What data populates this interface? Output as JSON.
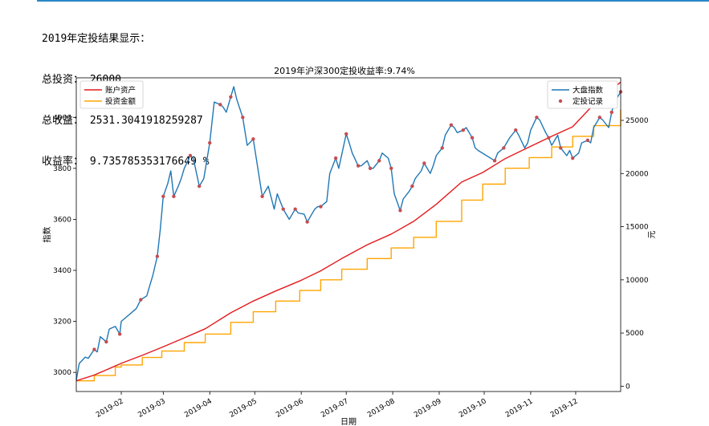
{
  "summary": {
    "heading": "2019年定投结果显示：",
    "total_invest_label": "总投资：",
    "total_invest_value": "26000",
    "total_profit_label": "总收益：",
    "total_profit_value": "2531.3041918259287",
    "return_rate_label": "收益率：",
    "return_rate_value": "9.735785353176649 %"
  },
  "chart_data": {
    "type": "line",
    "title": "2019年沪深300定投收益率:9.74%",
    "xlabel": "日期",
    "ylabel_left": "指数",
    "ylabel_right": "元",
    "x_ticks": [
      "2019-02",
      "2019-03",
      "2019-04",
      "2019-05",
      "2019-06",
      "2019-07",
      "2019-08",
      "2019-09",
      "2019-10",
      "2019-11",
      "2019-12"
    ],
    "x_range": [
      "2019-01-02",
      "2019-12-31"
    ],
    "y_left_ticks": [
      3000,
      3200,
      3400,
      3600,
      3800,
      4000
    ],
    "y_left_range": [
      2925,
      4155
    ],
    "y_right_ticks": [
      0,
      5000,
      10000,
      15000,
      20000,
      25000
    ],
    "y_right_range": [
      -500,
      29000
    ],
    "legend_left": {
      "position": "upper left",
      "entries": [
        "账户资产",
        "投资金额"
      ]
    },
    "legend_right": {
      "position": "upper right",
      "entries": [
        "大盘指数",
        "定投记录"
      ]
    },
    "colors": {
      "index": "#1f77b4",
      "assets": "#e41a1c",
      "invest": "#ffa500",
      "records": "#c44e52"
    },
    "index_series": {
      "name": "大盘指数",
      "points": [
        [
          "2019-01-02",
          2970
        ],
        [
          "2019-01-04",
          3035
        ],
        [
          "2019-01-08",
          3060
        ],
        [
          "2019-01-10",
          3055
        ],
        [
          "2019-01-14",
          3090
        ],
        [
          "2019-01-16",
          3080
        ],
        [
          "2019-01-18",
          3140
        ],
        [
          "2019-01-22",
          3120
        ],
        [
          "2019-01-24",
          3170
        ],
        [
          "2019-01-28",
          3180
        ],
        [
          "2019-01-31",
          3150
        ],
        [
          "2019-02-01",
          3200
        ],
        [
          "2019-02-11",
          3250
        ],
        [
          "2019-02-14",
          3285
        ],
        [
          "2019-02-18",
          3300
        ],
        [
          "2019-02-20",
          3340
        ],
        [
          "2019-02-22",
          3380
        ],
        [
          "2019-02-25",
          3455
        ],
        [
          "2019-02-27",
          3560
        ],
        [
          "2019-03-01",
          3690
        ],
        [
          "2019-03-04",
          3740
        ],
        [
          "2019-03-06",
          3790
        ],
        [
          "2019-03-08",
          3690
        ],
        [
          "2019-03-11",
          3730
        ],
        [
          "2019-03-13",
          3760
        ],
        [
          "2019-03-15",
          3800
        ],
        [
          "2019-03-19",
          3850
        ],
        [
          "2019-03-21",
          3840
        ],
        [
          "2019-03-25",
          3730
        ],
        [
          "2019-03-28",
          3760
        ],
        [
          "2019-04-01",
          3900
        ],
        [
          "2019-04-04",
          4060
        ],
        [
          "2019-04-08",
          4050
        ],
        [
          "2019-04-10",
          4040
        ],
        [
          "2019-04-12",
          4020
        ],
        [
          "2019-04-15",
          4080
        ],
        [
          "2019-04-17",
          4120
        ],
        [
          "2019-04-19",
          4070
        ],
        [
          "2019-04-23",
          4000
        ],
        [
          "2019-04-26",
          3890
        ],
        [
          "2019-04-30",
          3915
        ],
        [
          "2019-05-06",
          3690
        ],
        [
          "2019-05-08",
          3710
        ],
        [
          "2019-05-10",
          3730
        ],
        [
          "2019-05-14",
          3640
        ],
        [
          "2019-05-16",
          3700
        ],
        [
          "2019-05-20",
          3640
        ],
        [
          "2019-05-22",
          3620
        ],
        [
          "2019-05-24",
          3600
        ],
        [
          "2019-05-28",
          3640
        ],
        [
          "2019-05-30",
          3625
        ],
        [
          "2019-06-03",
          3620
        ],
        [
          "2019-06-05",
          3590
        ],
        [
          "2019-06-10",
          3640
        ],
        [
          "2019-06-12",
          3650
        ],
        [
          "2019-06-14",
          3650
        ],
        [
          "2019-06-18",
          3670
        ],
        [
          "2019-06-20",
          3780
        ],
        [
          "2019-06-24",
          3840
        ],
        [
          "2019-06-26",
          3800
        ],
        [
          "2019-07-01",
          3935
        ],
        [
          "2019-07-03",
          3900
        ],
        [
          "2019-07-05",
          3860
        ],
        [
          "2019-07-09",
          3810
        ],
        [
          "2019-07-11",
          3810
        ],
        [
          "2019-07-15",
          3830
        ],
        [
          "2019-07-17",
          3800
        ],
        [
          "2019-07-19",
          3800
        ],
        [
          "2019-07-23",
          3830
        ],
        [
          "2019-07-25",
          3860
        ],
        [
          "2019-07-29",
          3840
        ],
        [
          "2019-07-31",
          3800
        ],
        [
          "2019-08-02",
          3700
        ],
        [
          "2019-08-06",
          3635
        ],
        [
          "2019-08-08",
          3680
        ],
        [
          "2019-08-12",
          3710
        ],
        [
          "2019-08-14",
          3730
        ],
        [
          "2019-08-16",
          3760
        ],
        [
          "2019-08-20",
          3790
        ],
        [
          "2019-08-22",
          3820
        ],
        [
          "2019-08-26",
          3780
        ],
        [
          "2019-08-28",
          3810
        ],
        [
          "2019-08-30",
          3850
        ],
        [
          "2019-09-03",
          3880
        ],
        [
          "2019-09-05",
          3930
        ],
        [
          "2019-09-09",
          3970
        ],
        [
          "2019-09-11",
          3960
        ],
        [
          "2019-09-13",
          3940
        ],
        [
          "2019-09-17",
          3950
        ],
        [
          "2019-09-19",
          3960
        ],
        [
          "2019-09-23",
          3920
        ],
        [
          "2019-09-25",
          3880
        ],
        [
          "2019-09-27",
          3870
        ],
        [
          "2019-10-08",
          3830
        ],
        [
          "2019-10-10",
          3860
        ],
        [
          "2019-10-14",
          3880
        ],
        [
          "2019-10-16",
          3900
        ],
        [
          "2019-10-18",
          3920
        ],
        [
          "2019-10-22",
          3950
        ],
        [
          "2019-10-24",
          3930
        ],
        [
          "2019-10-28",
          3880
        ],
        [
          "2019-10-30",
          3900
        ],
        [
          "2019-11-01",
          3950
        ],
        [
          "2019-11-05",
          4000
        ],
        [
          "2019-11-07",
          3990
        ],
        [
          "2019-11-11",
          3940
        ],
        [
          "2019-11-13",
          3920
        ],
        [
          "2019-11-15",
          3890
        ],
        [
          "2019-11-19",
          3930
        ],
        [
          "2019-11-21",
          3880
        ],
        [
          "2019-11-25",
          3850
        ],
        [
          "2019-11-27",
          3870
        ],
        [
          "2019-11-29",
          3840
        ],
        [
          "2019-12-03",
          3860
        ],
        [
          "2019-12-05",
          3900
        ],
        [
          "2019-12-09",
          3910
        ],
        [
          "2019-12-11",
          3900
        ],
        [
          "2019-12-13",
          3960
        ],
        [
          "2019-12-17",
          4000
        ],
        [
          "2019-12-19",
          3990
        ],
        [
          "2019-12-23",
          3960
        ],
        [
          "2019-12-25",
          4020
        ],
        [
          "2019-12-27",
          4060
        ],
        [
          "2019-12-31",
          4100
        ]
      ]
    },
    "assets_series": {
      "name": "账户资产",
      "points": [
        [
          "2019-01-02",
          500
        ],
        [
          "2019-01-14",
          1050
        ],
        [
          "2019-01-28",
          1900
        ],
        [
          "2019-02-01",
          2150
        ],
        [
          "2019-02-15",
          2900
        ],
        [
          "2019-02-28",
          3650
        ],
        [
          "2019-03-15",
          4550
        ],
        [
          "2019-03-29",
          5400
        ],
        [
          "2019-04-15",
          6900
        ],
        [
          "2019-04-30",
          8000
        ],
        [
          "2019-05-15",
          8950
        ],
        [
          "2019-05-31",
          9900
        ],
        [
          "2019-06-14",
          10850
        ],
        [
          "2019-06-28",
          12000
        ],
        [
          "2019-07-15",
          13300
        ],
        [
          "2019-07-31",
          14300
        ],
        [
          "2019-08-15",
          15500
        ],
        [
          "2019-08-30",
          17100
        ],
        [
          "2019-09-16",
          19200
        ],
        [
          "2019-09-30",
          20100
        ],
        [
          "2019-10-15",
          21400
        ],
        [
          "2019-10-31",
          22500
        ],
        [
          "2019-11-15",
          23500
        ],
        [
          "2019-11-29",
          24400
        ],
        [
          "2019-12-13",
          26500
        ],
        [
          "2019-12-31",
          28600
        ]
      ]
    },
    "invest_series": {
      "name": "投资金额",
      "points": [
        [
          "2019-01-02",
          500
        ],
        [
          "2019-01-14",
          1000
        ],
        [
          "2019-01-28",
          1800
        ],
        [
          "2019-02-01",
          2000
        ],
        [
          "2019-02-15",
          2700
        ],
        [
          "2019-02-28",
          3300
        ],
        [
          "2019-03-15",
          4100
        ],
        [
          "2019-03-29",
          4900
        ],
        [
          "2019-04-15",
          6000
        ],
        [
          "2019-04-30",
          7000
        ],
        [
          "2019-05-15",
          8000
        ],
        [
          "2019-05-31",
          9000
        ],
        [
          "2019-06-14",
          10000
        ],
        [
          "2019-06-28",
          11000
        ],
        [
          "2019-07-15",
          12000
        ],
        [
          "2019-07-31",
          13000
        ],
        [
          "2019-08-15",
          14000
        ],
        [
          "2019-08-30",
          15500
        ],
        [
          "2019-09-16",
          17500
        ],
        [
          "2019-09-30",
          19000
        ],
        [
          "2019-10-15",
          20500
        ],
        [
          "2019-10-31",
          21500
        ],
        [
          "2019-11-15",
          22500
        ],
        [
          "2019-11-29",
          23500
        ],
        [
          "2019-12-13",
          24500
        ],
        [
          "2019-12-31",
          26000
        ]
      ]
    },
    "record_points": [
      [
        "2019-01-14",
        3090
      ],
      [
        "2019-01-22",
        3120
      ],
      [
        "2019-01-31",
        3150
      ],
      [
        "2019-02-14",
        3285
      ],
      [
        "2019-02-25",
        3455
      ],
      [
        "2019-03-01",
        3690
      ],
      [
        "2019-03-08",
        3690
      ],
      [
        "2019-03-19",
        3850
      ],
      [
        "2019-03-25",
        3730
      ],
      [
        "2019-04-01",
        3900
      ],
      [
        "2019-04-08",
        4050
      ],
      [
        "2019-04-15",
        4080
      ],
      [
        "2019-04-23",
        4000
      ],
      [
        "2019-04-30",
        3915
      ],
      [
        "2019-05-06",
        3690
      ],
      [
        "2019-05-20",
        3640
      ],
      [
        "2019-05-28",
        3640
      ],
      [
        "2019-06-05",
        3590
      ],
      [
        "2019-06-14",
        3650
      ],
      [
        "2019-06-24",
        3840
      ],
      [
        "2019-07-01",
        3935
      ],
      [
        "2019-07-09",
        3810
      ],
      [
        "2019-07-17",
        3800
      ],
      [
        "2019-07-23",
        3830
      ],
      [
        "2019-07-31",
        3800
      ],
      [
        "2019-08-06",
        3635
      ],
      [
        "2019-08-14",
        3730
      ],
      [
        "2019-08-22",
        3820
      ],
      [
        "2019-09-03",
        3880
      ],
      [
        "2019-09-09",
        3970
      ],
      [
        "2019-09-17",
        3950
      ],
      [
        "2019-09-23",
        3920
      ],
      [
        "2019-10-08",
        3830
      ],
      [
        "2019-10-14",
        3880
      ],
      [
        "2019-10-22",
        3950
      ],
      [
        "2019-11-05",
        4000
      ],
      [
        "2019-11-13",
        3920
      ],
      [
        "2019-11-21",
        3880
      ],
      [
        "2019-11-29",
        3840
      ],
      [
        "2019-12-09",
        3910
      ],
      [
        "2019-12-17",
        4000
      ],
      [
        "2019-12-25",
        4020
      ],
      [
        "2019-12-31",
        4100
      ]
    ]
  }
}
